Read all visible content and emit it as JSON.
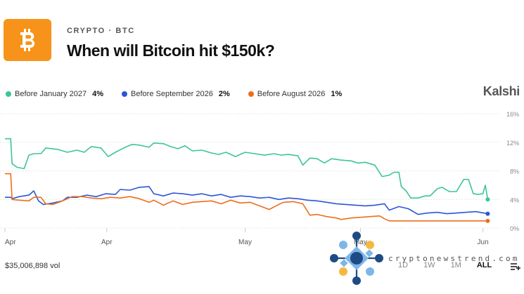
{
  "header": {
    "category": "CRYPTO · BTC",
    "title": "When will Bitcoin hit $150k?",
    "logo_icon": "bitcoin-logo-icon",
    "logo_color": "#f7931a"
  },
  "brand": "Kalshi",
  "footer": {
    "volume": "$35,006,898 vol",
    "ranges": [
      "1D",
      "1W",
      "1M",
      "ALL"
    ],
    "active_range": "ALL",
    "menu_icon": "add-list-icon"
  },
  "watermark": {
    "text": "cryptonewstrend.com",
    "icon": "network-logo-icon"
  },
  "chart_data": {
    "type": "line",
    "title": "",
    "xlabel": "",
    "ylabel": "",
    "ylim": [
      0,
      16
    ],
    "y_ticks": [
      "0%",
      "4%",
      "8%",
      "12%",
      "16%"
    ],
    "y_tick_values": [
      0,
      4,
      8,
      12,
      16
    ],
    "x_ticks": [
      "Apr",
      "Apr",
      "May",
      "May",
      "Jun"
    ],
    "x_tick_positions": [
      0,
      0.212,
      0.5,
      0.74,
      0.995
    ],
    "grid": true,
    "legend_position": "top-left",
    "series": [
      {
        "name": "Before January 2027",
        "label": "4%",
        "color": "#3cc59a",
        "points": [
          [
            0,
            12.5
          ],
          [
            0.012,
            12.5
          ],
          [
            0.015,
            9
          ],
          [
            0.025,
            8.5
          ],
          [
            0.04,
            8.3
          ],
          [
            0.05,
            10.2
          ],
          [
            0.06,
            10.4
          ],
          [
            0.075,
            10.4
          ],
          [
            0.085,
            11.2
          ],
          [
            0.11,
            11
          ],
          [
            0.13,
            10.6
          ],
          [
            0.15,
            10.9
          ],
          [
            0.165,
            10.6
          ],
          [
            0.18,
            11.4
          ],
          [
            0.2,
            11.2
          ],
          [
            0.215,
            10
          ],
          [
            0.23,
            10.6
          ],
          [
            0.25,
            11.3
          ],
          [
            0.265,
            11.7
          ],
          [
            0.28,
            11.6
          ],
          [
            0.3,
            11.3
          ],
          [
            0.31,
            11.9
          ],
          [
            0.33,
            11.8
          ],
          [
            0.345,
            11.4
          ],
          [
            0.36,
            11.1
          ],
          [
            0.375,
            11.5
          ],
          [
            0.39,
            10.8
          ],
          [
            0.41,
            10.9
          ],
          [
            0.43,
            10.5
          ],
          [
            0.445,
            10.3
          ],
          [
            0.46,
            10.6
          ],
          [
            0.48,
            10
          ],
          [
            0.5,
            10.6
          ],
          [
            0.52,
            10.4
          ],
          [
            0.54,
            10.2
          ],
          [
            0.56,
            10.4
          ],
          [
            0.575,
            10.2
          ],
          [
            0.59,
            10.3
          ],
          [
            0.61,
            10.1
          ],
          [
            0.62,
            8.8
          ],
          [
            0.635,
            9.8
          ],
          [
            0.65,
            9.7
          ],
          [
            0.665,
            9.1
          ],
          [
            0.68,
            9.7
          ],
          [
            0.7,
            9.5
          ],
          [
            0.72,
            9.4
          ],
          [
            0.735,
            9.1
          ],
          [
            0.75,
            9.2
          ],
          [
            0.77,
            8.8
          ],
          [
            0.785,
            7.2
          ],
          [
            0.8,
            7.4
          ],
          [
            0.81,
            7.8
          ],
          [
            0.82,
            7.8
          ],
          [
            0.825,
            5.8
          ],
          [
            0.835,
            5.2
          ],
          [
            0.845,
            4.2
          ],
          [
            0.86,
            4.2
          ],
          [
            0.875,
            4.5
          ],
          [
            0.885,
            4.5
          ],
          [
            0.9,
            5.5
          ],
          [
            0.91,
            5.7
          ],
          [
            0.925,
            5.1
          ],
          [
            0.94,
            5.1
          ],
          [
            0.955,
            6.8
          ],
          [
            0.965,
            6.8
          ],
          [
            0.975,
            4.8
          ],
          [
            0.985,
            4.7
          ],
          [
            0.995,
            4.8
          ],
          [
            1.0,
            6
          ],
          [
            1.005,
            4
          ]
        ]
      },
      {
        "name": "Before September 2026",
        "label": "2%",
        "color": "#2b56d8",
        "points": [
          [
            0,
            4.3
          ],
          [
            0.012,
            4.3
          ],
          [
            0.015,
            4.1
          ],
          [
            0.03,
            4.4
          ],
          [
            0.05,
            4.6
          ],
          [
            0.06,
            5.2
          ],
          [
            0.07,
            3.8
          ],
          [
            0.08,
            3.3
          ],
          [
            0.1,
            3.5
          ],
          [
            0.12,
            3.8
          ],
          [
            0.13,
            4.3
          ],
          [
            0.15,
            4.3
          ],
          [
            0.17,
            4.6
          ],
          [
            0.19,
            4.4
          ],
          [
            0.21,
            4.8
          ],
          [
            0.23,
            4.7
          ],
          [
            0.24,
            5.4
          ],
          [
            0.26,
            5.3
          ],
          [
            0.28,
            5.7
          ],
          [
            0.3,
            5.8
          ],
          [
            0.31,
            4.8
          ],
          [
            0.33,
            4.5
          ],
          [
            0.35,
            4.9
          ],
          [
            0.37,
            4.8
          ],
          [
            0.39,
            4.6
          ],
          [
            0.41,
            4.8
          ],
          [
            0.43,
            4.5
          ],
          [
            0.45,
            4.7
          ],
          [
            0.47,
            4.3
          ],
          [
            0.49,
            4.5
          ],
          [
            0.51,
            4.4
          ],
          [
            0.53,
            4.2
          ],
          [
            0.55,
            4.3
          ],
          [
            0.57,
            4
          ],
          [
            0.59,
            4.2
          ],
          [
            0.61,
            4.1
          ],
          [
            0.63,
            3.9
          ],
          [
            0.65,
            3.8
          ],
          [
            0.67,
            3.6
          ],
          [
            0.69,
            3.4
          ],
          [
            0.71,
            3.3
          ],
          [
            0.73,
            3.2
          ],
          [
            0.75,
            3.1
          ],
          [
            0.77,
            3.2
          ],
          [
            0.79,
            3.4
          ],
          [
            0.8,
            2.5
          ],
          [
            0.82,
            3
          ],
          [
            0.84,
            2.7
          ],
          [
            0.86,
            1.9
          ],
          [
            0.88,
            2.1
          ],
          [
            0.9,
            2.2
          ],
          [
            0.92,
            2
          ],
          [
            0.94,
            2.1
          ],
          [
            0.96,
            2.2
          ],
          [
            0.98,
            2.3
          ],
          [
            1.005,
            2
          ]
        ]
      },
      {
        "name": "Before August 2026",
        "label": "1%",
        "color": "#ee6e1b",
        "points": [
          [
            0,
            7.6
          ],
          [
            0.012,
            7.6
          ],
          [
            0.015,
            4
          ],
          [
            0.03,
            3.9
          ],
          [
            0.05,
            3.8
          ],
          [
            0.06,
            4.3
          ],
          [
            0.075,
            4.3
          ],
          [
            0.085,
            3.4
          ],
          [
            0.1,
            3.3
          ],
          [
            0.12,
            3.8
          ],
          [
            0.14,
            4.4
          ],
          [
            0.16,
            4.4
          ],
          [
            0.18,
            4.2
          ],
          [
            0.2,
            4.1
          ],
          [
            0.22,
            4.3
          ],
          [
            0.24,
            4.2
          ],
          [
            0.26,
            4.4
          ],
          [
            0.28,
            4.1
          ],
          [
            0.3,
            3.6
          ],
          [
            0.31,
            3.9
          ],
          [
            0.33,
            3.2
          ],
          [
            0.35,
            3.8
          ],
          [
            0.37,
            3.3
          ],
          [
            0.39,
            3.6
          ],
          [
            0.41,
            3.7
          ],
          [
            0.43,
            3.8
          ],
          [
            0.45,
            3.4
          ],
          [
            0.47,
            3.9
          ],
          [
            0.49,
            3.5
          ],
          [
            0.51,
            3.6
          ],
          [
            0.53,
            3.1
          ],
          [
            0.55,
            2.6
          ],
          [
            0.57,
            3.3
          ],
          [
            0.58,
            3.6
          ],
          [
            0.6,
            3.7
          ],
          [
            0.62,
            3.4
          ],
          [
            0.635,
            1.8
          ],
          [
            0.65,
            1.9
          ],
          [
            0.67,
            1.6
          ],
          [
            0.69,
            1.4
          ],
          [
            0.7,
            1.2
          ],
          [
            0.72,
            1.4
          ],
          [
            0.74,
            1.5
          ],
          [
            0.76,
            1.6
          ],
          [
            0.78,
            1.7
          ],
          [
            0.79,
            1.3
          ],
          [
            0.8,
            1
          ],
          [
            0.85,
            1
          ],
          [
            0.9,
            1
          ],
          [
            0.95,
            1
          ],
          [
            1.005,
            1
          ]
        ]
      }
    ]
  }
}
